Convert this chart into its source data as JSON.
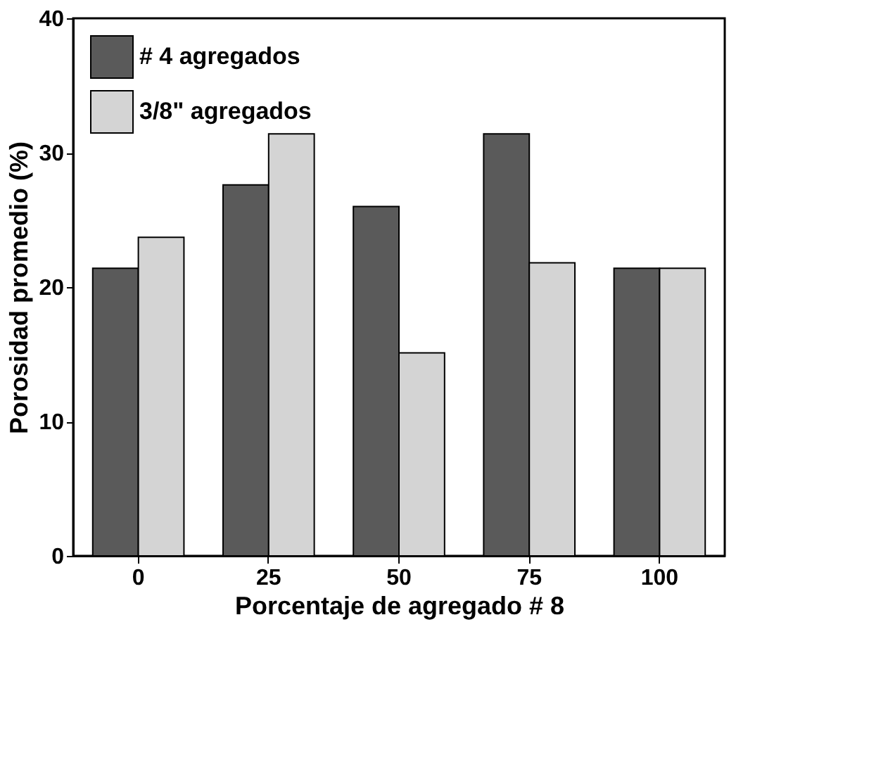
{
  "chart_data": {
    "type": "bar",
    "xlabel": "Porcentaje de agregado # 8",
    "ylabel": "Porosidad promedio  (%)",
    "categories": [
      "0",
      "25",
      "50",
      "75",
      "100"
    ],
    "series": [
      {
        "name": "# 4   agregados",
        "color": "#5a5a5a",
        "values": [
          21.4,
          27.6,
          26.0,
          31.4,
          21.4
        ]
      },
      {
        "name": "3/8\" agregados",
        "color": "#d4d4d4",
        "values": [
          23.7,
          31.4,
          15.1,
          21.8,
          21.4
        ]
      }
    ],
    "ylim": [
      0,
      40
    ],
    "yticks": [
      0,
      10,
      20,
      30,
      40
    ],
    "grid": false,
    "legend": "top left"
  }
}
